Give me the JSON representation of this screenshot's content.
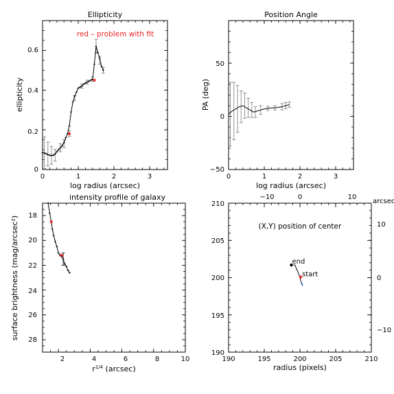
{
  "chart_data": [
    {
      "type": "line",
      "title": "Ellipticity",
      "annotation": "red – problem with fit",
      "xlabel": "log radius (arcsec)",
      "ylabel": "ellipticity",
      "xlim": [
        0,
        3.5
      ],
      "ylim": [
        0,
        0.75
      ],
      "xticks": [
        "0",
        "1",
        "2",
        "3"
      ],
      "yticks": [
        "0",
        "0.2",
        "0.4",
        "0.6"
      ],
      "x": [
        0.0,
        0.05,
        0.1,
        0.15,
        0.2,
        0.25,
        0.3,
        0.35,
        0.4,
        0.45,
        0.5,
        0.55,
        0.6,
        0.65,
        0.7,
        0.75,
        0.8,
        0.85,
        0.9,
        0.95,
        1.0,
        1.05,
        1.1,
        1.15,
        1.2,
        1.25,
        1.3,
        1.35,
        1.4,
        1.45,
        1.5,
        1.55,
        1.6,
        1.65,
        1.7
      ],
      "y": [
        0.085,
        0.083,
        0.08,
        0.075,
        0.072,
        0.07,
        0.072,
        0.078,
        0.09,
        0.1,
        0.11,
        0.12,
        0.135,
        0.16,
        0.18,
        0.22,
        0.29,
        0.34,
        0.37,
        0.39,
        0.41,
        0.415,
        0.42,
        0.43,
        0.435,
        0.44,
        0.445,
        0.45,
        0.455,
        0.53,
        0.62,
        0.59,
        0.56,
        0.52,
        0.5
      ],
      "error_points": [
        {
          "x": 0.05,
          "y": 0.085,
          "err": 0.08
        },
        {
          "x": 0.15,
          "y": 0.078,
          "err": 0.06
        },
        {
          "x": 0.25,
          "y": 0.072,
          "err": 0.045
        },
        {
          "x": 0.35,
          "y": 0.072,
          "err": 0.03
        },
        {
          "x": 0.5,
          "y": 0.11,
          "err": 0.02
        },
        {
          "x": 0.6,
          "y": 0.13,
          "err": 0.02
        },
        {
          "x": 0.75,
          "y": 0.18,
          "err": 0.015
        },
        {
          "x": 0.9,
          "y": 0.36,
          "err": 0.012
        },
        {
          "x": 1.1,
          "y": 0.42,
          "err": 0.01
        },
        {
          "x": 1.25,
          "y": 0.44,
          "err": 0.01
        },
        {
          "x": 1.4,
          "y": 0.455,
          "err": 0.012
        },
        {
          "x": 1.5,
          "y": 0.62,
          "err": 0.035
        },
        {
          "x": 1.6,
          "y": 0.55,
          "err": 0.02
        },
        {
          "x": 1.7,
          "y": 0.5,
          "err": 0.015
        }
      ],
      "problem_points": [
        {
          "x": 0.75,
          "y": 0.18
        },
        {
          "x": 1.45,
          "y": 0.45
        }
      ]
    },
    {
      "type": "line",
      "title": "Position Angle",
      "xlabel": "log radius (arcsec)",
      "ylabel": "PA (deg)",
      "xlim": [
        0,
        3.5
      ],
      "ylim": [
        -50,
        90
      ],
      "xticks": [
        "0",
        "1",
        "2",
        "3"
      ],
      "yticks": [
        "−50",
        "0",
        "50"
      ],
      "x": [
        0.0,
        0.1,
        0.2,
        0.3,
        0.4,
        0.5,
        0.6,
        0.7,
        0.8,
        0.9,
        1.0,
        1.1,
        1.2,
        1.3,
        1.4,
        1.5,
        1.6,
        1.7
      ],
      "y": [
        2,
        5,
        7,
        9,
        10,
        8,
        6,
        4,
        5,
        6,
        7,
        7.5,
        8,
        8,
        8.5,
        9,
        10,
        11
      ],
      "error_points": [
        {
          "x": 0.05,
          "y": 2,
          "err": 30
        },
        {
          "x": 0.15,
          "y": 5,
          "err": 27
        },
        {
          "x": 0.25,
          "y": 7,
          "err": 22
        },
        {
          "x": 0.35,
          "y": 9,
          "err": 15
        },
        {
          "x": 0.45,
          "y": 10,
          "err": 12
        },
        {
          "x": 0.55,
          "y": 8,
          "err": 9
        },
        {
          "x": 0.65,
          "y": 6,
          "err": 7
        },
        {
          "x": 0.75,
          "y": 4,
          "err": 5
        },
        {
          "x": 0.9,
          "y": 6,
          "err": 4
        },
        {
          "x": 1.1,
          "y": 7.5,
          "err": 2
        },
        {
          "x": 1.3,
          "y": 8,
          "err": 2
        },
        {
          "x": 1.5,
          "y": 9,
          "err": 3
        },
        {
          "x": 1.6,
          "y": 10,
          "err": 3
        },
        {
          "x": 1.7,
          "y": 11,
          "err": 2.5
        }
      ]
    },
    {
      "type": "line",
      "title": "intensity profile of galaxy",
      "xlabel": "r¹ᐟ⁴ (arcsec)",
      "xlabel_parts": [
        "r",
        "1/4",
        " (arcsec)"
      ],
      "ylabel": "surface brightness (mag/arcsec²)",
      "xlim": [
        1,
        10
      ],
      "ylim": [
        29,
        17
      ],
      "xticks": [
        "2",
        "4",
        "6",
        "8",
        "10"
      ],
      "yticks": [
        "18",
        "20",
        "22",
        "24",
        "26",
        "28"
      ],
      "x": [
        1.35,
        1.45,
        1.55,
        1.62,
        1.7,
        1.8,
        1.9,
        2.0,
        2.1,
        2.2,
        2.3,
        2.4,
        2.5,
        2.6,
        2.7
      ],
      "y": [
        17.0,
        17.8,
        18.5,
        19.1,
        19.6,
        20.1,
        20.5,
        21.0,
        21.2,
        21.3,
        21.5,
        21.9,
        22.1,
        22.4,
        22.6
      ],
      "error_points": [
        {
          "x": 2.3,
          "y": 21.5,
          "err": 0.5
        }
      ],
      "problem_points": [
        {
          "x": 1.55,
          "y": 18.5
        },
        {
          "x": 2.2,
          "y": 21.2
        }
      ]
    },
    {
      "type": "line",
      "title": "(X,Y) position of center",
      "xlabel": "radius (pixels)",
      "top_axis_label": "arcsec",
      "xlim": [
        190,
        210
      ],
      "ylim": [
        190,
        210
      ],
      "xticks": [
        "190",
        "195",
        "200",
        "205",
        "210"
      ],
      "yticks": [
        "190",
        "195",
        "200",
        "205",
        "210"
      ],
      "top_ticks": [
        "−10",
        "0",
        "10"
      ],
      "right_ticks": [
        "10",
        "0",
        "−10"
      ],
      "x": [
        199.1,
        199.3,
        199.5,
        199.8,
        200.0,
        200.1,
        200.3
      ],
      "y": [
        201.7,
        201.7,
        201.2,
        200.6,
        200.0,
        199.6,
        199.0
      ],
      "start_label": "start",
      "end_label": "end",
      "start_point": {
        "x": 200.1,
        "y": 200.1
      },
      "end_point": {
        "x": 198.8,
        "y": 201.7
      }
    }
  ]
}
